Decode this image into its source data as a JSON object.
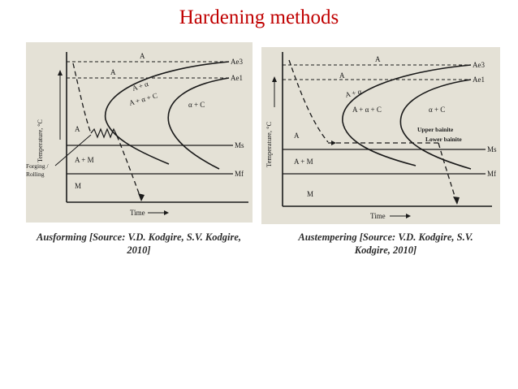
{
  "title": "Hardening methods",
  "colors": {
    "title": "#c00000",
    "figure_bg": "#e4e1d6",
    "ink": "#1a1a1a"
  },
  "left_figure": {
    "caption": "Ausforming [Source: V.D. Kodgire, S.V. Kodgire, 2010]",
    "ylabel": "Temperature, °C",
    "xlabel": "Time",
    "lines": {
      "ae3": "Ae3",
      "ae1": "Ae1",
      "ms": "Ms",
      "mf": "Mf"
    },
    "regions": {
      "a_top": "A",
      "a_mid": "A",
      "a_alpha": "A + α",
      "a_alpha_c": "A + α + C",
      "alpha_c": "α + C",
      "a_low": "A",
      "a_m": "A + M",
      "m": "M"
    },
    "annotation": "Forging / Rolling"
  },
  "right_figure": {
    "caption": "Austempering [Source: V.D. Kodgire, S.V. Kodgire, 2010]",
    "ylabel": "Temperature, °C",
    "xlabel": "Time",
    "lines": {
      "ae3": "Ae3",
      "ae1": "Ae1",
      "ms": "Ms",
      "mf": "Mf"
    },
    "regions": {
      "a_top": "A",
      "a_mid": "A",
      "a_alpha": "A + α",
      "a_alpha_c": "A + α + C",
      "alpha_c": "α + C",
      "a_low": "A",
      "a_m": "A + M",
      "m": "M"
    },
    "annotations": {
      "upper_bainite": "Upper bainite",
      "lower_bainite": "Lower bainite"
    }
  }
}
